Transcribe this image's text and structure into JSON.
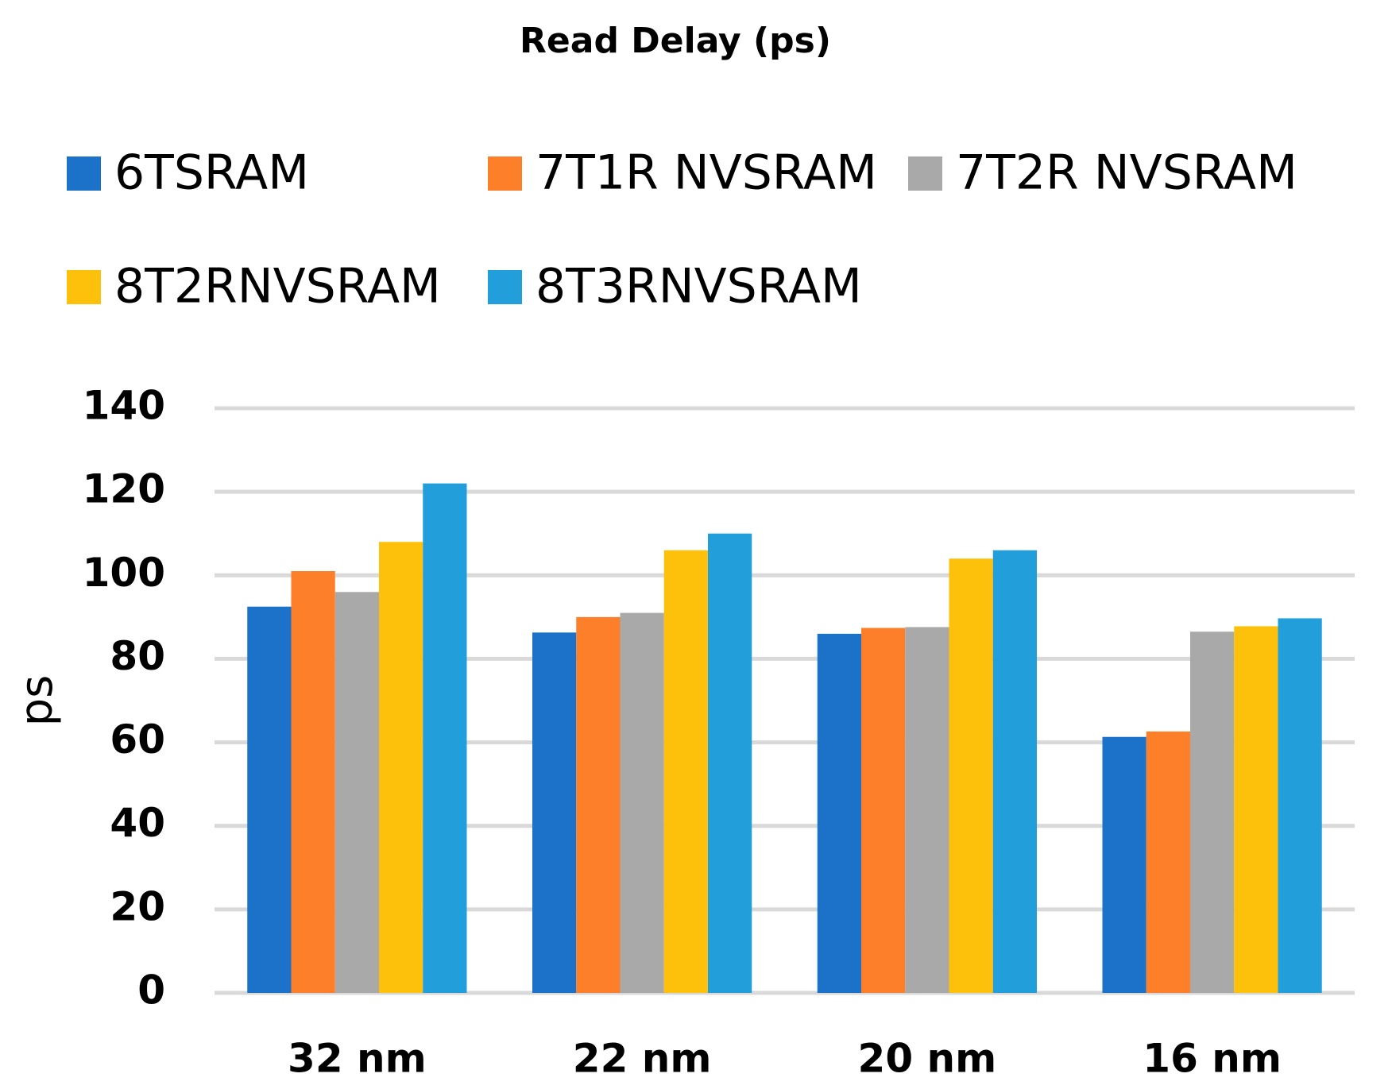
{
  "chart_data": {
    "type": "bar",
    "title": "Read Delay (ps)",
    "y_label": "ps",
    "categories": [
      "32 nm",
      "22 nm",
      "20 nm",
      "16 nm"
    ],
    "series": [
      {
        "name": "6TSRAM",
        "color": "#1c72c9",
        "values": [
          92.5,
          86.3,
          86,
          61.3
        ]
      },
      {
        "name": "7T1R NVSRAM",
        "color": "#fd7f2a",
        "values": [
          101,
          90,
          87.4,
          62.6
        ]
      },
      {
        "name": "7T2R NVSRAM",
        "color": "#a9a9a9",
        "values": [
          96,
          91,
          87.6,
          86.5
        ]
      },
      {
        "name": "8T2RNVSRAM",
        "color": "#fec10b",
        "values": [
          108,
          106,
          104,
          87.8
        ]
      },
      {
        "name": "8T3RNVSRAM",
        "color": "#229fdb",
        "values": [
          122,
          110,
          106,
          89.7
        ]
      }
    ],
    "ylim": [
      0,
      140
    ],
    "yticks": [
      0,
      20,
      40,
      60,
      80,
      100,
      120,
      140
    ],
    "grid": true
  }
}
